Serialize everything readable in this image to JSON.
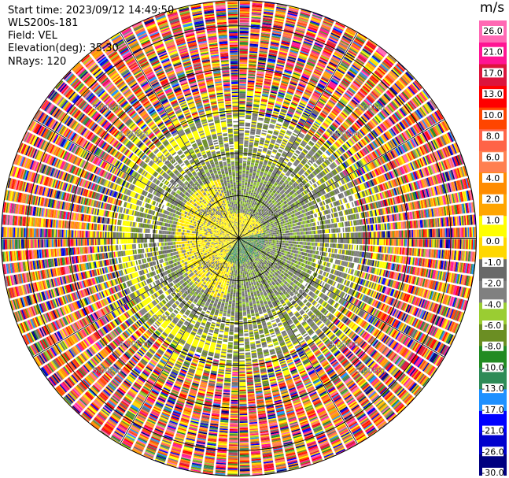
{
  "header": {
    "start_time": "Start time: 2023/09/12 14:49:50",
    "instrument": "WLS200s-181",
    "field": "Field: VEL",
    "elevation": "Elevation(deg): 35.30",
    "nrays": "NRays: 120"
  },
  "chart_data": {
    "type": "heatmap",
    "title": "",
    "subtitle": "",
    "projection": "polar PPI",
    "field": "VEL",
    "n_rays": 120,
    "range_ring_labels": [
      "1.00km",
      "2.00km",
      "3.00km",
      "4.00km",
      "5.00km"
    ],
    "range_rings_km": [
      1,
      2,
      3,
      4,
      5
    ],
    "max_range_km": 5.6,
    "grid": true,
    "colorbar": {
      "unit": "m/s",
      "position": "right",
      "tick_labels": [
        "26.0",
        "21.0",
        "17.0",
        "13.0",
        "10.0",
        "8.0",
        "6.0",
        "4.0",
        "2.0",
        "1.0",
        "0.0",
        "-1.0",
        "-2.0",
        "-4.0",
        "-6.0",
        "-8.0",
        "-10.0",
        "-13.0",
        "-17.0",
        "-21.0",
        "-26.0",
        "-30.0"
      ],
      "colors": [
        "#000080",
        "#0000CD",
        "#0000FF",
        "#1E90FF",
        "#2E8B57",
        "#228B22",
        "#6B8E23",
        "#9ACD32",
        "#808080",
        "#696969",
        "#FFD700",
        "#FFFF00",
        "#FFA500",
        "#FF8C00",
        "#FF7F50",
        "#FF6347",
        "#FF4500",
        "#FF0000",
        "#DC143C",
        "#FF1493",
        "#FF69B4"
      ]
    }
  }
}
